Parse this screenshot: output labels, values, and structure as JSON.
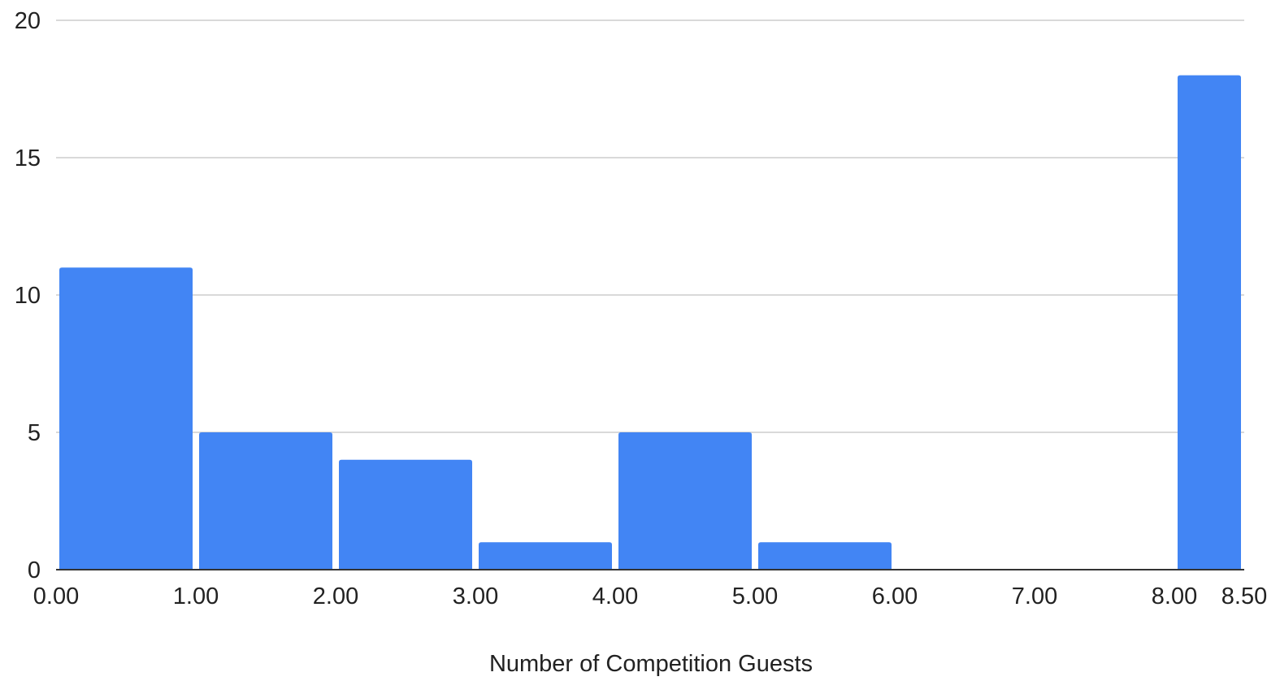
{
  "chart_data": {
    "type": "bar",
    "title": "",
    "xlabel": "Number of Competition Guests",
    "ylabel": "",
    "bins": [
      {
        "start": 0,
        "end": 1,
        "count": 11
      },
      {
        "start": 1,
        "end": 2,
        "count": 5
      },
      {
        "start": 2,
        "end": 3,
        "count": 4
      },
      {
        "start": 3,
        "end": 4,
        "count": 1
      },
      {
        "start": 4,
        "end": 5,
        "count": 5
      },
      {
        "start": 5,
        "end": 6,
        "count": 1
      },
      {
        "start": 6,
        "end": 7,
        "count": 0
      },
      {
        "start": 7,
        "end": 8,
        "count": 0
      },
      {
        "start": 8,
        "end": 8.5,
        "count": 18
      }
    ],
    "xlim": [
      0,
      8.5
    ],
    "ylim": [
      0,
      20
    ],
    "x_ticks": [
      0,
      1,
      2,
      3,
      4,
      5,
      6,
      7,
      8,
      8.5
    ],
    "x_tick_labels": [
      "0.00",
      "1.00",
      "2.00",
      "3.00",
      "4.00",
      "5.00",
      "6.00",
      "7.00",
      "8.00",
      "8.50"
    ],
    "y_ticks": [
      0,
      5,
      10,
      15,
      20
    ],
    "y_tick_labels": [
      "0",
      "5",
      "10",
      "15",
      "20"
    ],
    "grid": true,
    "legend": "none",
    "colors": {
      "bar": "#4285f4",
      "grid": "#d9d9d9",
      "text": "#222222"
    }
  }
}
